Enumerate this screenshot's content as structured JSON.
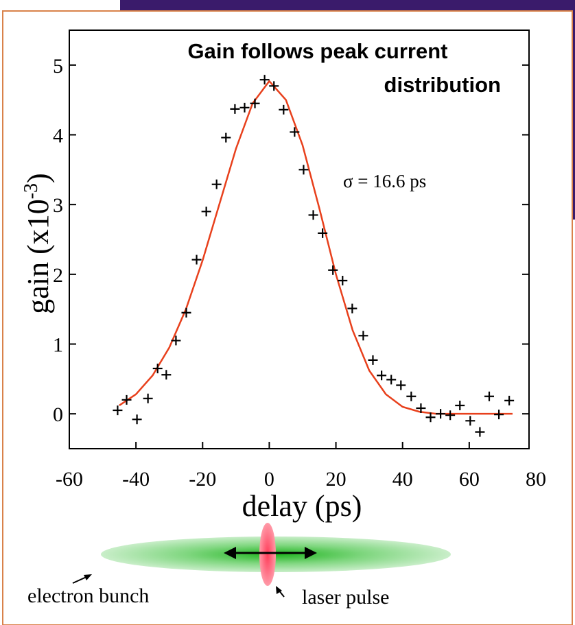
{
  "chart_data": {
    "type": "scatter",
    "title": [
      "Gain follows peak current",
      "distribution"
    ],
    "annotation": "σ = 16.6 ps",
    "x_label": "delay (ps)",
    "y_label": "gain (x10",
    "y_label_exponent": "-3",
    "y_label_close": ")",
    "xlim": [
      -60,
      80
    ],
    "ylim": [
      -0.5,
      5.5
    ],
    "xticks": [
      -60,
      -40,
      -20,
      0,
      20,
      40,
      60,
      80
    ],
    "yticks": [
      0,
      1,
      2,
      3,
      4,
      5
    ],
    "points": {
      "color": "#000000",
      "x": [
        -45.5,
        -42.8,
        -39.7,
        -36.4,
        -33.5,
        -30.9,
        -28,
        -24.9,
        -21.8,
        -18.9,
        -15.8,
        -13,
        -10.3,
        -7.4,
        -4.3,
        -1.4,
        1.4,
        4.3,
        7.6,
        10.3,
        13.2,
        16,
        19.1,
        22,
        24.9,
        28.2,
        31.1,
        33.7,
        36.6,
        39.5,
        42.6,
        45.5,
        48.4,
        51.4,
        54.3,
        57.2,
        60.3,
        63.2,
        66,
        68.9,
        72
      ],
      "values": [
        0.05,
        0.2,
        -0.08,
        0.22,
        0.65,
        0.56,
        1.05,
        1.45,
        2.21,
        2.9,
        3.29,
        3.96,
        4.37,
        4.39,
        4.45,
        4.79,
        4.7,
        4.36,
        4.04,
        3.5,
        2.85,
        2.59,
        2.06,
        1.91,
        1.51,
        1.12,
        0.77,
        0.55,
        0.49,
        0.41,
        0.25,
        0.08,
        -0.05,
        0,
        -0.02,
        0.12,
        -0.1,
        -0.26,
        0.25,
        -0.01,
        0.19
      ]
    },
    "fit": {
      "color": "#e8401c",
      "x": [
        -45,
        -40,
        -35,
        -30,
        -25,
        -20,
        -15,
        -10,
        -5,
        0,
        5,
        10,
        15,
        20,
        25,
        30,
        35,
        40,
        45,
        50,
        55,
        60,
        65,
        70,
        73
      ],
      "values": [
        0.12,
        0.28,
        0.55,
        0.95,
        1.5,
        2.2,
        3.0,
        3.8,
        4.45,
        4.77,
        4.5,
        3.85,
        2.95,
        2.0,
        1.2,
        0.62,
        0.28,
        0.1,
        0.03,
        0,
        0,
        0,
        0,
        0,
        0
      ]
    },
    "diagram_labels": [
      "electron bunch",
      "laser pulse"
    ]
  }
}
